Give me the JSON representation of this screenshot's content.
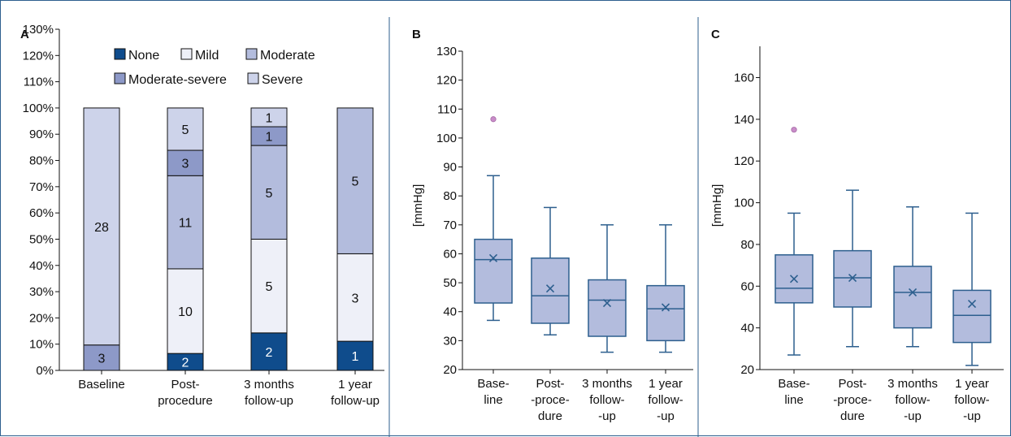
{
  "colors": {
    "none": "#0f4c8c",
    "mild": "#eef0f8",
    "moderate": "#b3bcdd",
    "moderate_severe": "#8d99c8",
    "severe": "#cdd3ea",
    "box_fill": "#b3bcdd",
    "box_stroke": "#2d5f8e",
    "outlier": "#c98cc9",
    "frame": "#2d5f8e"
  },
  "chart_data": [
    {
      "panel": "A",
      "type": "bar",
      "stacked": true,
      "yticks": [
        "0%",
        "10%",
        "20%",
        "30%",
        "40%",
        "50%",
        "60%",
        "70%",
        "80%",
        "90%",
        "100%",
        "110%",
        "120%",
        "130%"
      ],
      "ylim": [
        0,
        130
      ],
      "legend": [
        "None",
        "Mild",
        "Moderate",
        "Moderate-severe",
        "Severe"
      ],
      "categories": [
        [
          "Baseline"
        ],
        [
          "Post-",
          "procedure"
        ],
        [
          "3 months",
          "follow-up"
        ],
        [
          "1 year",
          "follow-up"
        ]
      ],
      "series": [
        {
          "name": "None",
          "color_key": "none",
          "values": [
            0,
            6.45,
            14.29,
            11.11
          ],
          "labels": [
            "",
            "2",
            "2",
            "1"
          ]
        },
        {
          "name": "Mild",
          "color_key": "mild",
          "values": [
            0,
            32.26,
            35.71,
            33.33
          ],
          "labels": [
            "",
            "10",
            "5",
            "3"
          ]
        },
        {
          "name": "Moderate",
          "color_key": "moderate",
          "values": [
            0,
            35.48,
            35.71,
            55.56
          ],
          "labels": [
            "",
            "11",
            "5",
            "5"
          ]
        },
        {
          "name": "Moderate-severe",
          "color_key": "moderate_severe",
          "values": [
            9.68,
            9.68,
            7.14,
            0
          ],
          "labels": [
            "3",
            "3",
            "1",
            ""
          ]
        },
        {
          "name": "Severe",
          "color_key": "severe",
          "values": [
            90.32,
            16.13,
            7.14,
            0
          ],
          "labels": [
            "28",
            "5",
            "1",
            ""
          ]
        }
      ]
    },
    {
      "panel": "B",
      "type": "box",
      "ylabel": "[mmHg]",
      "ylim": [
        20,
        130
      ],
      "yticks": [
        20,
        30,
        40,
        50,
        60,
        70,
        80,
        90,
        100,
        110,
        120,
        130
      ],
      "categories": [
        [
          "Base-",
          "line"
        ],
        [
          "Post-",
          "-proce-",
          "dure"
        ],
        [
          "3 months",
          "follow-",
          "-up"
        ],
        [
          "1 year",
          "follow-",
          "-up"
        ]
      ],
      "boxes": [
        {
          "min": 37,
          "q1": 43,
          "median": 58,
          "q3": 65,
          "max": 87,
          "mean": 58.5,
          "outliers": [
            106.5
          ]
        },
        {
          "min": 32,
          "q1": 36,
          "median": 45.5,
          "q3": 58.5,
          "max": 76,
          "mean": 48,
          "outliers": []
        },
        {
          "min": 26,
          "q1": 31.5,
          "median": 44,
          "q3": 51,
          "max": 70,
          "mean": 43,
          "outliers": []
        },
        {
          "min": 26,
          "q1": 30,
          "median": 41,
          "q3": 49,
          "max": 70,
          "mean": 41.5,
          "outliers": []
        }
      ]
    },
    {
      "panel": "C",
      "type": "box",
      "ylabel": "[mmHg]",
      "ylim": [
        20,
        175
      ],
      "yticks": [
        20,
        40,
        60,
        80,
        100,
        120,
        140,
        160
      ],
      "categories": [
        [
          "Base-",
          "line"
        ],
        [
          "Post-",
          "-proce-",
          "dure"
        ],
        [
          "3 months",
          "follow-",
          "-up"
        ],
        [
          "1 year",
          "follow-",
          "-up"
        ]
      ],
      "boxes": [
        {
          "min": 27,
          "q1": 52,
          "median": 59,
          "q3": 75,
          "max": 95,
          "mean": 63.5,
          "outliers": [
            135
          ]
        },
        {
          "min": 31,
          "q1": 50,
          "median": 64,
          "q3": 77,
          "max": 106,
          "mean": 64,
          "outliers": []
        },
        {
          "min": 31,
          "q1": 40,
          "median": 57,
          "q3": 69.5,
          "max": 98,
          "mean": 57,
          "outliers": []
        },
        {
          "min": 22,
          "q1": 33,
          "median": 46,
          "q3": 58,
          "max": 95,
          "mean": 51.5,
          "outliers": []
        }
      ]
    }
  ]
}
